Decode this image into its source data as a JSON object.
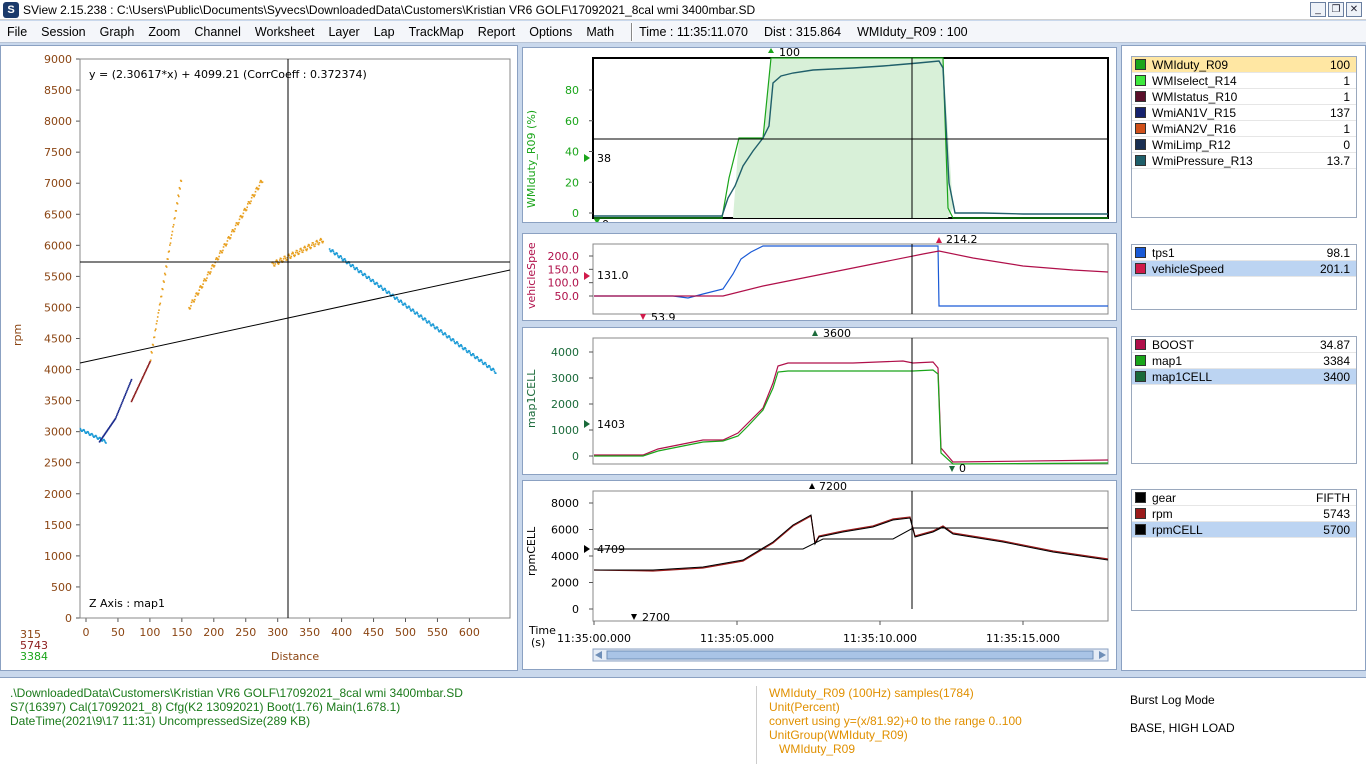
{
  "window": {
    "title": "SView 2.15.238  :  C:\\Users\\Public\\Documents\\Syvecs\\DownloadedData\\Customers\\Kristian VR6 GOLF\\17092021_8cal wmi 3400mbar.SD",
    "minimize": "_",
    "restore": "❐",
    "close": "✕"
  },
  "menu": {
    "items": [
      "File",
      "Session",
      "Graph",
      "Zoom",
      "Channel",
      "Worksheet",
      "Layer",
      "Lap",
      "TrackMap",
      "Report",
      "Options",
      "Math"
    ],
    "status_time": "Time : 11:35:11.070",
    "status_dist": "Dist : 315.864",
    "status_channel": "WMIduty_R09 : 100"
  },
  "scatter": {
    "equation": "y = (2.30617*x) + 4099.21  (CorrCoeff : 0.372374)",
    "zaxis": "Z Axis : map1",
    "ylabel": "rpm",
    "xlabel": "Distance",
    "yticks": [
      "0",
      "500",
      "1000",
      "1500",
      "2000",
      "2500",
      "3000",
      "3500",
      "4000",
      "4500",
      "5000",
      "5500",
      "6000",
      "6500",
      "7000",
      "7500",
      "8000",
      "8500",
      "9000"
    ],
    "xticks": [
      "0",
      "50",
      "100",
      "150",
      "200",
      "250",
      "300",
      "350",
      "400",
      "450",
      "500",
      "550",
      "600"
    ],
    "cursor_values": [
      "315",
      "5743",
      "3384"
    ],
    "colors": {
      "orange": "#e8a020",
      "blue": "#1a9ad6",
      "dark_blue": "#1a2a8c",
      "red": "#8b1a1a"
    }
  },
  "graphs": {
    "g1": {
      "ylabel": "WMIduty_R09 (%)",
      "yticks": [
        "0",
        "20",
        "40",
        "60",
        "80"
      ],
      "top_marker": "100",
      "left_marker": "38",
      "bottom_marker": "0"
    },
    "g2": {
      "ylabel": "vehicleSpee",
      "yticks": [
        "50.0",
        "100.0",
        "150.0",
        "200.0"
      ],
      "top_marker": "214.2",
      "left_marker": "131.0",
      "bottom_marker": "53.9"
    },
    "g3": {
      "ylabel": "map1CELL",
      "yticks": [
        "0",
        "1000",
        "2000",
        "3000",
        "4000"
      ],
      "top_marker": "3600",
      "left_marker": "1403",
      "bottom_marker": "0"
    },
    "g4": {
      "ylabel": "rpmCELL",
      "yticks": [
        "0",
        "2000",
        "4000",
        "6000",
        "8000"
      ],
      "top_marker": "7200",
      "left_marker": "4709",
      "bottom_marker": "2700"
    },
    "time_label": "Time",
    "time_unit": "(s)",
    "time_ticks": [
      "11:35:00.000",
      "11:35:05.000",
      "11:35:10.000",
      "11:35:15.000"
    ]
  },
  "legend1": [
    {
      "name": "WMIduty_R09",
      "value": "100",
      "color": "#1aa51a"
    },
    {
      "name": "WMIselect_R14",
      "value": "1",
      "color": "#3ee83e"
    },
    {
      "name": "WMIstatus_R10",
      "value": "1",
      "color": "#5a0f2a"
    },
    {
      "name": "WmiAN1V_R15",
      "value": "137",
      "color": "#15226e"
    },
    {
      "name": "WmiAN2V_R16",
      "value": "1",
      "color": "#d0501a"
    },
    {
      "name": "WmiLimp_R12",
      "value": "0",
      "color": "#1a2f52"
    },
    {
      "name": "WmiPressure_R13",
      "value": "13.7",
      "color": "#1f5f6a"
    }
  ],
  "legend2": [
    {
      "name": "tps1",
      "value": "98.1",
      "color": "#1a5ad6"
    },
    {
      "name": "vehicleSpeed",
      "value": "201.1",
      "color": "#d01a4a"
    }
  ],
  "legend3": [
    {
      "name": "BOOST",
      "value": "34.87",
      "color": "#b0104a"
    },
    {
      "name": "map1",
      "value": "3384",
      "color": "#1aa51a"
    },
    {
      "name": "map1CELL",
      "value": "3400",
      "color": "#1a6a3a"
    }
  ],
  "legend4": [
    {
      "name": "gear",
      "value": "FIFTH",
      "color": "#000000"
    },
    {
      "name": "rpm",
      "value": "5743",
      "color": "#9a1a1a"
    },
    {
      "name": "rpmCELL",
      "value": "5700",
      "color": "#000000"
    }
  ],
  "info": {
    "file_lines": [
      ".\\DownloadedData\\Customers\\Kristian VR6 GOLF\\17092021_8cal wmi 3400mbar.SD",
      "S7(16397) Cal(17092021_8) Cfg(K2 13092021) Boot(1.76) Main(1.678.1)",
      "DateTime(2021\\9\\17 11:31) UncompressedSize(289 KB)"
    ],
    "channel_lines": [
      "WMIduty_R09 (100Hz) samples(1784)",
      "Unit(Percent)",
      "convert using y=(x/81.92)+0 to the range 0..100",
      "UnitGroup(WMIduty_R09)",
      "   WMIduty_R09"
    ],
    "mode_lines": [
      "Burst Log Mode",
      "BASE, HIGH LOAD"
    ]
  }
}
